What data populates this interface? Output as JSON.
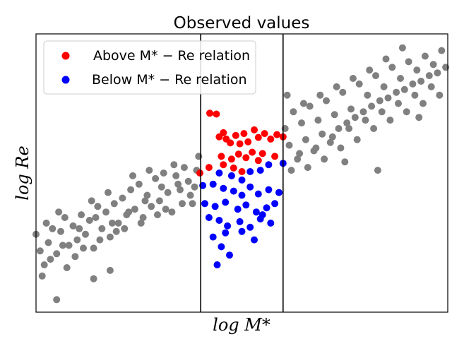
{
  "chart_data": {
    "type": "scatter",
    "title": "Observed values",
    "xlabel": "log M*",
    "ylabel": "log Re",
    "xlim": [
      0,
      10
    ],
    "ylim": [
      0,
      10
    ],
    "ticks": "none",
    "grid": false,
    "legend_position": "top-left",
    "vertical_lines": [
      4.0,
      6.0
    ],
    "series": [
      {
        "name": "Above M* − Re relation",
        "color": "#ff0000",
        "points": [
          [
            4.22,
            7.15
          ],
          [
            4.38,
            7.12
          ],
          [
            4.45,
            6.3
          ],
          [
            4.55,
            6.45
          ],
          [
            4.62,
            6.22
          ],
          [
            4.72,
            6.08
          ],
          [
            4.85,
            6.35
          ],
          [
            4.95,
            6.05
          ],
          [
            5.05,
            6.42
          ],
          [
            5.15,
            6.12
          ],
          [
            5.3,
            6.55
          ],
          [
            5.4,
            6.28
          ],
          [
            5.55,
            6.42
          ],
          [
            5.7,
            6.22
          ],
          [
            5.85,
            6.38
          ],
          [
            6.0,
            6.3
          ],
          [
            4.5,
            5.6
          ],
          [
            4.75,
            5.5
          ],
          [
            4.92,
            5.68
          ],
          [
            5.1,
            5.55
          ],
          [
            5.25,
            5.75
          ],
          [
            5.5,
            5.7
          ],
          [
            5.8,
            5.6
          ],
          [
            3.98,
            5.0
          ],
          [
            4.2,
            5.2
          ],
          [
            4.55,
            5.3
          ],
          [
            4.8,
            5.18
          ],
          [
            5.0,
            5.05
          ],
          [
            5.4,
            5.45
          ]
        ]
      },
      {
        "name": "Below M* − Re relation",
        "color": "#0000ff",
        "points": [
          [
            4.3,
            4.6
          ],
          [
            4.55,
            4.45
          ],
          [
            4.8,
            4.35
          ],
          [
            5.0,
            4.2
          ],
          [
            5.2,
            4.5
          ],
          [
            5.4,
            4.25
          ],
          [
            5.65,
            4.4
          ],
          [
            5.9,
            4.3
          ],
          [
            4.1,
            3.9
          ],
          [
            4.35,
            3.8
          ],
          [
            4.6,
            3.95
          ],
          [
            4.9,
            3.7
          ],
          [
            5.1,
            3.85
          ],
          [
            5.35,
            3.6
          ],
          [
            5.6,
            3.75
          ],
          [
            5.8,
            3.9
          ],
          [
            4.2,
            3.4
          ],
          [
            4.45,
            3.3
          ],
          [
            4.65,
            3.1
          ],
          [
            4.95,
            3.25
          ],
          [
            5.2,
            3.05
          ],
          [
            5.45,
            3.35
          ],
          [
            5.7,
            3.2
          ],
          [
            4.3,
            2.7
          ],
          [
            4.6,
            2.85
          ],
          [
            5.0,
            2.9
          ],
          [
            5.3,
            2.6
          ],
          [
            4.5,
            2.35
          ],
          [
            4.7,
            2.05
          ],
          [
            5.5,
            3.5
          ],
          [
            5.0,
            4.75
          ],
          [
            5.2,
            5.05
          ],
          [
            5.45,
            5.1
          ],
          [
            5.65,
            5.3
          ],
          [
            4.45,
            5.0
          ],
          [
            4.75,
            4.9
          ],
          [
            6.0,
            5.35
          ],
          [
            4.4,
            1.7
          ],
          [
            4.05,
            4.55
          ]
        ]
      },
      {
        "name": "",
        "color": "#808080",
        "points": [
          [
            0.0,
            2.8
          ],
          [
            0.1,
            2.2
          ],
          [
            0.2,
            1.7
          ],
          [
            0.3,
            2.5
          ],
          [
            0.4,
            3.0
          ],
          [
            0.5,
            2.1
          ],
          [
            0.6,
            2.9
          ],
          [
            0.7,
            3.4
          ],
          [
            0.8,
            2.4
          ],
          [
            0.9,
            3.1
          ],
          [
            1.0,
            2.6
          ],
          [
            1.1,
            3.5
          ],
          [
            1.2,
            2.8
          ],
          [
            1.3,
            3.3
          ],
          [
            1.4,
            2.3
          ],
          [
            1.5,
            3.8
          ],
          [
            1.6,
            3.0
          ],
          [
            1.7,
            3.6
          ],
          [
            1.8,
            2.7
          ],
          [
            1.9,
            3.9
          ],
          [
            2.0,
            3.2
          ],
          [
            2.1,
            4.1
          ],
          [
            2.2,
            3.5
          ],
          [
            2.3,
            4.4
          ],
          [
            2.4,
            3.7
          ],
          [
            2.5,
            4.6
          ],
          [
            2.6,
            3.4
          ],
          [
            2.7,
            4.2
          ],
          [
            2.8,
            3.8
          ],
          [
            2.9,
            4.8
          ],
          [
            3.0,
            4.0
          ],
          [
            3.1,
            5.0
          ],
          [
            3.2,
            4.3
          ],
          [
            3.3,
            3.6
          ],
          [
            3.4,
            4.9
          ],
          [
            3.5,
            4.4
          ],
          [
            3.6,
            5.2
          ],
          [
            3.7,
            4.7
          ],
          [
            3.8,
            3.9
          ],
          [
            3.9,
            5.1
          ],
          [
            0.15,
            1.3
          ],
          [
            0.35,
            1.9
          ],
          [
            0.55,
            3.6
          ],
          [
            0.75,
            1.6
          ],
          [
            0.95,
            2.0
          ],
          [
            1.15,
            2.3
          ],
          [
            1.35,
            4.0
          ],
          [
            1.55,
            2.6
          ],
          [
            1.75,
            4.3
          ],
          [
            1.95,
            2.9
          ],
          [
            2.15,
            3.0
          ],
          [
            2.35,
            4.9
          ],
          [
            2.55,
            3.2
          ],
          [
            2.75,
            5.1
          ],
          [
            2.95,
            3.5
          ],
          [
            3.15,
            3.7
          ],
          [
            3.35,
            5.3
          ],
          [
            3.55,
            3.9
          ],
          [
            3.75,
            4.2
          ],
          [
            3.95,
            5.6
          ],
          [
            0.5,
            0.45
          ],
          [
            1.4,
            1.2
          ],
          [
            1.8,
            1.5
          ],
          [
            0.25,
            3.2
          ],
          [
            0.65,
            2.4
          ],
          [
            1.05,
            3.0
          ],
          [
            1.45,
            3.4
          ],
          [
            1.85,
            3.2
          ],
          [
            2.25,
            3.6
          ],
          [
            2.65,
            4.0
          ],
          [
            3.05,
            4.5
          ],
          [
            3.45,
            4.6
          ],
          [
            3.85,
            4.5
          ],
          [
            6.05,
            6.6
          ],
          [
            6.15,
            6.0
          ],
          [
            6.25,
            7.2
          ],
          [
            6.35,
            5.5
          ],
          [
            6.45,
            6.8
          ],
          [
            6.55,
            6.2
          ],
          [
            6.65,
            7.4
          ],
          [
            6.75,
            5.8
          ],
          [
            6.85,
            6.9
          ],
          [
            6.95,
            6.4
          ],
          [
            7.05,
            7.6
          ],
          [
            7.15,
            6.1
          ],
          [
            7.25,
            7.1
          ],
          [
            7.35,
            6.6
          ],
          [
            7.45,
            7.9
          ],
          [
            7.55,
            6.8
          ],
          [
            7.65,
            7.3
          ],
          [
            7.75,
            7.0
          ],
          [
            7.85,
            8.2
          ],
          [
            7.95,
            7.2
          ],
          [
            8.05,
            7.8
          ],
          [
            8.15,
            7.4
          ],
          [
            8.25,
            8.5
          ],
          [
            8.35,
            7.6
          ],
          [
            8.45,
            8.1
          ],
          [
            8.55,
            7.7
          ],
          [
            8.65,
            8.8
          ],
          [
            8.75,
            7.9
          ],
          [
            8.85,
            8.4
          ],
          [
            8.95,
            8.0
          ],
          [
            9.05,
            9.0
          ],
          [
            9.15,
            8.2
          ],
          [
            9.25,
            8.7
          ],
          [
            9.35,
            8.3
          ],
          [
            9.45,
            9.2
          ],
          [
            9.55,
            8.5
          ],
          [
            9.65,
            8.9
          ],
          [
            9.75,
            8.6
          ],
          [
            9.85,
            9.4
          ],
          [
            9.95,
            8.8
          ],
          [
            6.2,
            5.1
          ],
          [
            6.4,
            5.7
          ],
          [
            6.6,
            5.2
          ],
          [
            6.8,
            5.9
          ],
          [
            7.0,
            5.5
          ],
          [
            7.2,
            6.3
          ],
          [
            7.4,
            5.9
          ],
          [
            7.6,
            6.6
          ],
          [
            7.8,
            6.2
          ],
          [
            8.0,
            6.9
          ],
          [
            8.2,
            6.6
          ],
          [
            8.4,
            7.2
          ],
          [
            8.6,
            6.9
          ],
          [
            8.8,
            7.5
          ],
          [
            9.0,
            7.2
          ],
          [
            9.2,
            7.8
          ],
          [
            9.4,
            7.5
          ],
          [
            9.6,
            8.1
          ],
          [
            9.8,
            7.8
          ],
          [
            6.1,
            7.8
          ],
          [
            6.5,
            7.5
          ],
          [
            6.9,
            7.8
          ],
          [
            7.3,
            8.1
          ],
          [
            7.7,
            8.4
          ],
          [
            8.1,
            8.7
          ],
          [
            8.5,
            9.1
          ],
          [
            8.3,
            5.1
          ],
          [
            7.5,
            5.4
          ],
          [
            9.3,
            7.0
          ],
          [
            8.9,
            9.5
          ]
        ]
      }
    ]
  }
}
